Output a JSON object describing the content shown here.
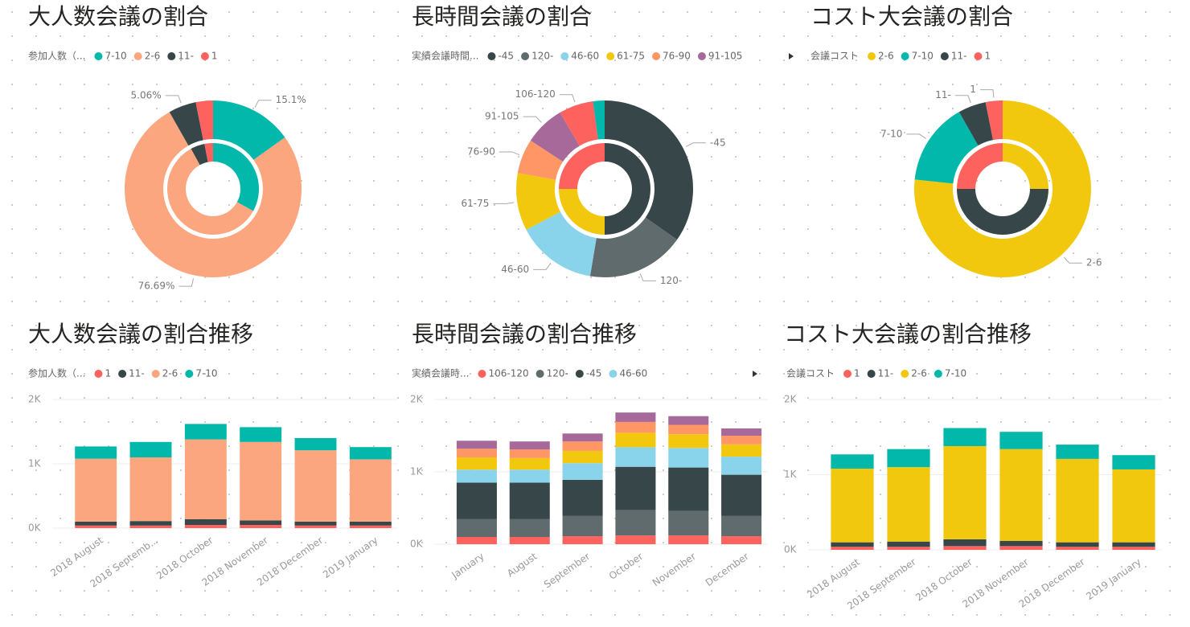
{
  "chart_data": [
    {
      "type": "donut",
      "title": "大人数会議の割合",
      "legend_title": "参加人数（...",
      "categories": [
        "7-10",
        "2-6",
        "11-",
        "1"
      ],
      "colors": [
        "#01B8AA",
        "#FBA67F",
        "#374649",
        "#FD625E"
      ],
      "values": [
        15.1,
        76.69,
        5.06,
        3.15
      ],
      "value_labels": [
        "15.1%",
        "76.69%",
        "5.06%",
        null
      ],
      "inner_values": [
        33,
        59,
        5,
        3
      ]
    },
    {
      "type": "donut",
      "title": "長時間会議の割合",
      "legend_title": "実績会議時間...",
      "categories": [
        "-45",
        "120-",
        "46-60",
        "61-75",
        "76-90",
        "91-105",
        "106-120",
        null
      ],
      "colors": [
        "#374649",
        "#5F6B6D",
        "#8AD4EB",
        "#F2C80F",
        "#FE9666",
        "#A66999",
        "#FD625E",
        "#01B8AA"
      ],
      "values": [
        33,
        17,
        14,
        10,
        6,
        7,
        6,
        2
      ],
      "inner_values": [
        50,
        0,
        0,
        25,
        0,
        0,
        25,
        0
      ]
    },
    {
      "type": "donut",
      "title": "コスト大会議の割合",
      "legend_title": "会議コスト",
      "categories": [
        "2-6",
        "7-10",
        "11-",
        "1"
      ],
      "colors": [
        "#F2C80F",
        "#01B8AA",
        "#374649",
        "#FD625E"
      ],
      "values": [
        76.7,
        15.1,
        5.1,
        3.1
      ],
      "inner_values": [
        25,
        0,
        50,
        25
      ]
    },
    {
      "type": "stacked_bar",
      "title": "大人数会議の割合推移",
      "legend_title": "参加人数（...",
      "categories": [
        "2018 August",
        "2018 Septemb...",
        "2018 October",
        "2018 November",
        "2018 December",
        "2019 January"
      ],
      "series": [
        {
          "name": "1",
          "color": "#FD625E",
          "values": [
            40,
            40,
            50,
            50,
            40,
            40
          ]
        },
        {
          "name": "11-",
          "color": "#374649",
          "values": [
            60,
            70,
            90,
            70,
            60,
            60
          ]
        },
        {
          "name": "2-6",
          "color": "#FBA67F",
          "values": [
            980,
            990,
            1240,
            1220,
            1110,
            970
          ]
        },
        {
          "name": "7-10",
          "color": "#01B8AA",
          "values": [
            190,
            240,
            240,
            230,
            190,
            190
          ]
        }
      ],
      "ylim": [
        0,
        2000
      ],
      "yticks": [
        {
          "value": 0,
          "label": "0K"
        },
        {
          "value": 1000,
          "label": "1K"
        },
        {
          "value": 2000,
          "label": "2K"
        }
      ],
      "grid": true
    },
    {
      "type": "stacked_bar",
      "title": "長時間会議の割合推移",
      "legend_title": "実績会議時...",
      "categories": [
        "January",
        "August",
        "September",
        "October",
        "November",
        "December"
      ],
      "series": [
        {
          "name": "106-120",
          "color": "#FD625E",
          "values": [
            100,
            100,
            110,
            120,
            120,
            110
          ]
        },
        {
          "name": "120-",
          "color": "#5F6B6D",
          "values": [
            250,
            250,
            280,
            350,
            340,
            280
          ]
        },
        {
          "name": "-45",
          "color": "#374649",
          "values": [
            500,
            500,
            500,
            600,
            600,
            570
          ]
        },
        {
          "name": "46-60",
          "color": "#8AD4EB",
          "values": [
            180,
            180,
            230,
            270,
            270,
            250
          ]
        },
        {
          "name": null,
          "color": "#F2C80F",
          "values": [
            170,
            160,
            170,
            200,
            190,
            170
          ]
        },
        {
          "name": null,
          "color": "#FE9666",
          "values": [
            120,
            120,
            130,
            150,
            130,
            120
          ]
        },
        {
          "name": null,
          "color": "#A66999",
          "values": [
            110,
            110,
            110,
            130,
            120,
            100
          ]
        }
      ],
      "ylim": [
        0,
        2000
      ],
      "yticks": [
        {
          "value": 0,
          "label": "0K"
        },
        {
          "value": 1000,
          "label": "1K"
        },
        {
          "value": 2000,
          "label": "2K"
        }
      ],
      "grid": true
    },
    {
      "type": "stacked_bar",
      "title": "コスト大会議の割合推移",
      "legend_title": "会議コスト",
      "categories": [
        "2018 August",
        "2018 September",
        "2018 October",
        "2018 November",
        "2018 December",
        "2019 January"
      ],
      "series": [
        {
          "name": "1",
          "color": "#FD625E",
          "values": [
            40,
            40,
            50,
            50,
            40,
            40
          ]
        },
        {
          "name": "11-",
          "color": "#374649",
          "values": [
            60,
            70,
            90,
            70,
            60,
            60
          ]
        },
        {
          "name": "2-6",
          "color": "#F2C80F",
          "values": [
            980,
            990,
            1240,
            1220,
            1110,
            970
          ]
        },
        {
          "name": "7-10",
          "color": "#01B8AA",
          "values": [
            190,
            240,
            240,
            230,
            190,
            190
          ]
        }
      ],
      "ylim": [
        0,
        2000
      ],
      "yticks": [
        {
          "value": 0,
          "label": "0K"
        },
        {
          "value": 1000,
          "label": "1K"
        },
        {
          "value": 2000,
          "label": "2K"
        }
      ],
      "grid": true
    }
  ]
}
